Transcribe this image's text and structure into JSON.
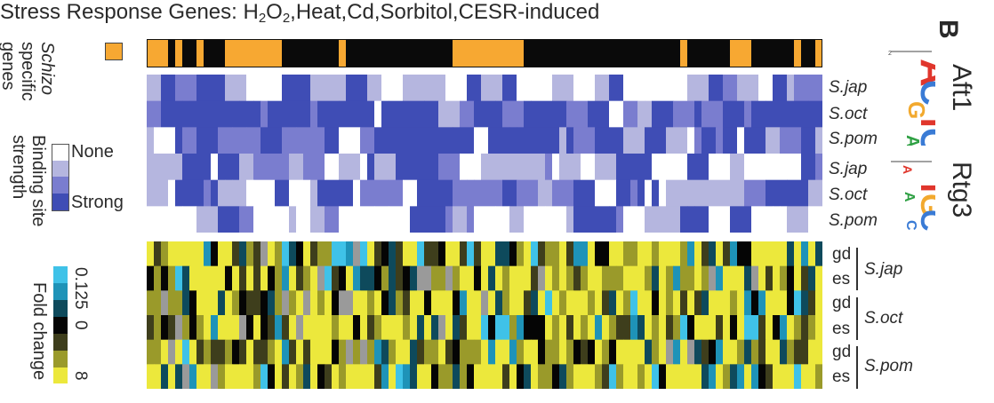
{
  "title": {
    "prefix": "Stress Response Genes: H",
    "sub1": "2",
    "mid": "O",
    "sub2": "2",
    "suffix": ",Heat,Cd,Sorbitol,CESR-induced"
  },
  "panel_label": "B",
  "legend_specific": {
    "italic": "Schizo",
    "line2": "specific",
    "line3": "genes"
  },
  "legend_binding": {
    "title_line1": "Binding site",
    "title_line2": "strength",
    "none": "None",
    "strong": "Strong"
  },
  "legend_fold": {
    "title": "Fold change",
    "ticks": [
      "0.125",
      "0",
      "8"
    ]
  },
  "motifs": [
    {
      "name": "Aft1",
      "rows": [
        "S.jap",
        "S.oct",
        "S.pom"
      ]
    },
    {
      "name": "Rtg3",
      "rows": [
        "S.jap",
        "S.oct",
        "S.pom"
      ]
    }
  ],
  "expression_groups": [
    {
      "species": "S.jap",
      "rows": [
        "gd",
        "es"
      ]
    },
    {
      "species": "S.oct",
      "rows": [
        "gd",
        "es"
      ]
    },
    {
      "species": "S.pom",
      "rows": [
        "gd",
        "es"
      ]
    }
  ],
  "logo_axis": {
    "max": "2",
    "min": "0"
  },
  "colors": {
    "specific": "#F7A832",
    "nonspecific": "#0a0a0a",
    "binding": [
      "#ffffff",
      "#B5B6DF",
      "#7A7DCF",
      "#3F4DB5"
    ],
    "fold": [
      "#ECE83C",
      "#9A9A2A",
      "#3E3E1C",
      "#050505",
      "#0E4A5C",
      "#1E93B8",
      "#3FC2E8"
    ],
    "missing": "#9a9a9a"
  }
}
